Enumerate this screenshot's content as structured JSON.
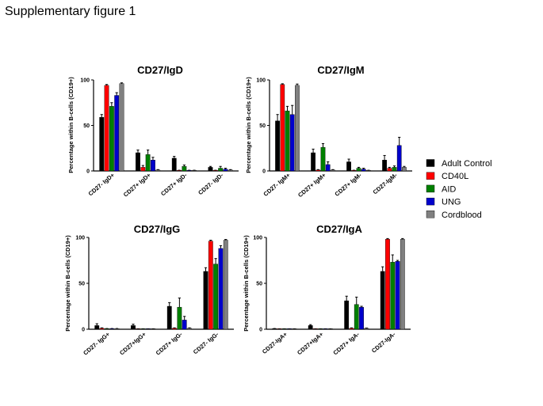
{
  "figure_title": "Supplementary figure 1",
  "legend": [
    {
      "name": "Adult Control",
      "color": "#000000"
    },
    {
      "name": "CD40L",
      "color": "#ff0000"
    },
    {
      "name": "AID",
      "color": "#008000"
    },
    {
      "name": "UNG",
      "color": "#0000cc"
    },
    {
      "name": "Cordblood",
      "color": "#808080"
    }
  ],
  "chart_data": [
    {
      "type": "bar",
      "title": "CD27/IgD",
      "ylabel": "Percentage within B-cells (CD19+)",
      "ylim": [
        0,
        100
      ],
      "yticks": [
        "0",
        "50",
        "100"
      ],
      "categories": [
        "CD27- IgD+",
        "CD27+ IgD+",
        "CD27+ IgD-",
        "CD27- IgD-"
      ],
      "series": [
        {
          "name": "Adult Control",
          "values": [
            59,
            20,
            14,
            4
          ],
          "errors": [
            3,
            3,
            2,
            1
          ]
        },
        {
          "name": "CD40L",
          "values": [
            94,
            4,
            0.5,
            0.5
          ],
          "errors": [
            1,
            2,
            0.3,
            0.3
          ]
        },
        {
          "name": "AID",
          "values": [
            71,
            18,
            5,
            3
          ],
          "errors": [
            4,
            5,
            1.5,
            2
          ]
        },
        {
          "name": "UNG",
          "values": [
            83,
            12,
            0.5,
            2
          ],
          "errors": [
            3,
            3,
            0.3,
            1
          ]
        },
        {
          "name": "Cordblood",
          "values": [
            96,
            1,
            0.5,
            1
          ],
          "errors": [
            0.8,
            0.5,
            0.3,
            0.5
          ]
        }
      ]
    },
    {
      "type": "bar",
      "title": "CD27/IgM",
      "ylabel": "Percentage within B-cells (CD19+)",
      "ylim": [
        0,
        100
      ],
      "yticks": [
        "0",
        "50",
        "100"
      ],
      "categories": [
        "CD27- IgM+",
        "CD27+ IgM+",
        "CD27+ IgM-",
        "CD27-IgM-"
      ],
      "series": [
        {
          "name": "Adult Control",
          "values": [
            55,
            20,
            10,
            12
          ],
          "errors": [
            7,
            4,
            3,
            5
          ]
        },
        {
          "name": "CD40L",
          "values": [
            95,
            1,
            0.5,
            3
          ],
          "errors": [
            0.8,
            0.5,
            0.3,
            1
          ]
        },
        {
          "name": "AID",
          "values": [
            66,
            26,
            3,
            4
          ],
          "errors": [
            5,
            4,
            1,
            1.5
          ]
        },
        {
          "name": "UNG",
          "values": [
            62,
            7,
            2,
            28
          ],
          "errors": [
            10,
            3,
            1,
            9
          ]
        },
        {
          "name": "Cordblood",
          "values": [
            94,
            1,
            0.5,
            4
          ],
          "errors": [
            1.5,
            0.5,
            0.3,
            1
          ]
        }
      ]
    },
    {
      "type": "bar",
      "title": "CD27/IgG",
      "ylabel": "Percentage within B-cells (CD19+)",
      "ylim": [
        0,
        100
      ],
      "yticks": [
        "0",
        "50",
        "100"
      ],
      "categories": [
        "CD27- IgG+",
        "CD27+IgG+",
        "CD27+ IgG-",
        "CD27- IgG-"
      ],
      "series": [
        {
          "name": "Adult Control",
          "values": [
            4,
            4,
            25,
            63
          ],
          "errors": [
            2,
            1.5,
            4,
            4
          ]
        },
        {
          "name": "CD40L",
          "values": [
            1,
            0.3,
            1,
            96
          ],
          "errors": [
            0.5,
            0.2,
            0.5,
            1
          ]
        },
        {
          "name": "AID",
          "values": [
            0.5,
            0.3,
            24,
            71
          ],
          "errors": [
            0.3,
            0.2,
            10,
            6
          ]
        },
        {
          "name": "UNG",
          "values": [
            0.5,
            0.3,
            10,
            88
          ],
          "errors": [
            0.3,
            0.2,
            4,
            3
          ]
        },
        {
          "name": "Cordblood",
          "values": [
            0.5,
            0.3,
            1,
            97
          ],
          "errors": [
            0.3,
            0.2,
            0.5,
            0.8
          ]
        }
      ]
    },
    {
      "type": "bar",
      "title": "CD27/IgA",
      "ylabel": "Percentage within B-cells (CD19+)",
      "ylim": [
        0,
        100
      ],
      "yticks": [
        "0",
        "50",
        "100"
      ],
      "categories": [
        "CD27-IgA+",
        "CD27+IgA+",
        "CD27+ IgA-",
        "CD27-IgA-"
      ],
      "series": [
        {
          "name": "Adult Control",
          "values": [
            0.5,
            4,
            31,
            63
          ],
          "errors": [
            0.3,
            1,
            5,
            5
          ]
        },
        {
          "name": "CD40L",
          "values": [
            0.3,
            0.3,
            1,
            98
          ],
          "errors": [
            0.2,
            0.2,
            0.5,
            0.8
          ]
        },
        {
          "name": "AID",
          "values": [
            0.3,
            0.3,
            27,
            73
          ],
          "errors": [
            0.2,
            0.2,
            8,
            8
          ]
        },
        {
          "name": "UNG",
          "values": [
            0.3,
            0.3,
            24,
            74
          ],
          "errors": [
            0.2,
            0.2,
            1,
            1
          ]
        },
        {
          "name": "Cordblood",
          "values": [
            0.3,
            0.3,
            1,
            98
          ],
          "errors": [
            0.2,
            0.2,
            0.3,
            0.8
          ]
        }
      ]
    }
  ]
}
